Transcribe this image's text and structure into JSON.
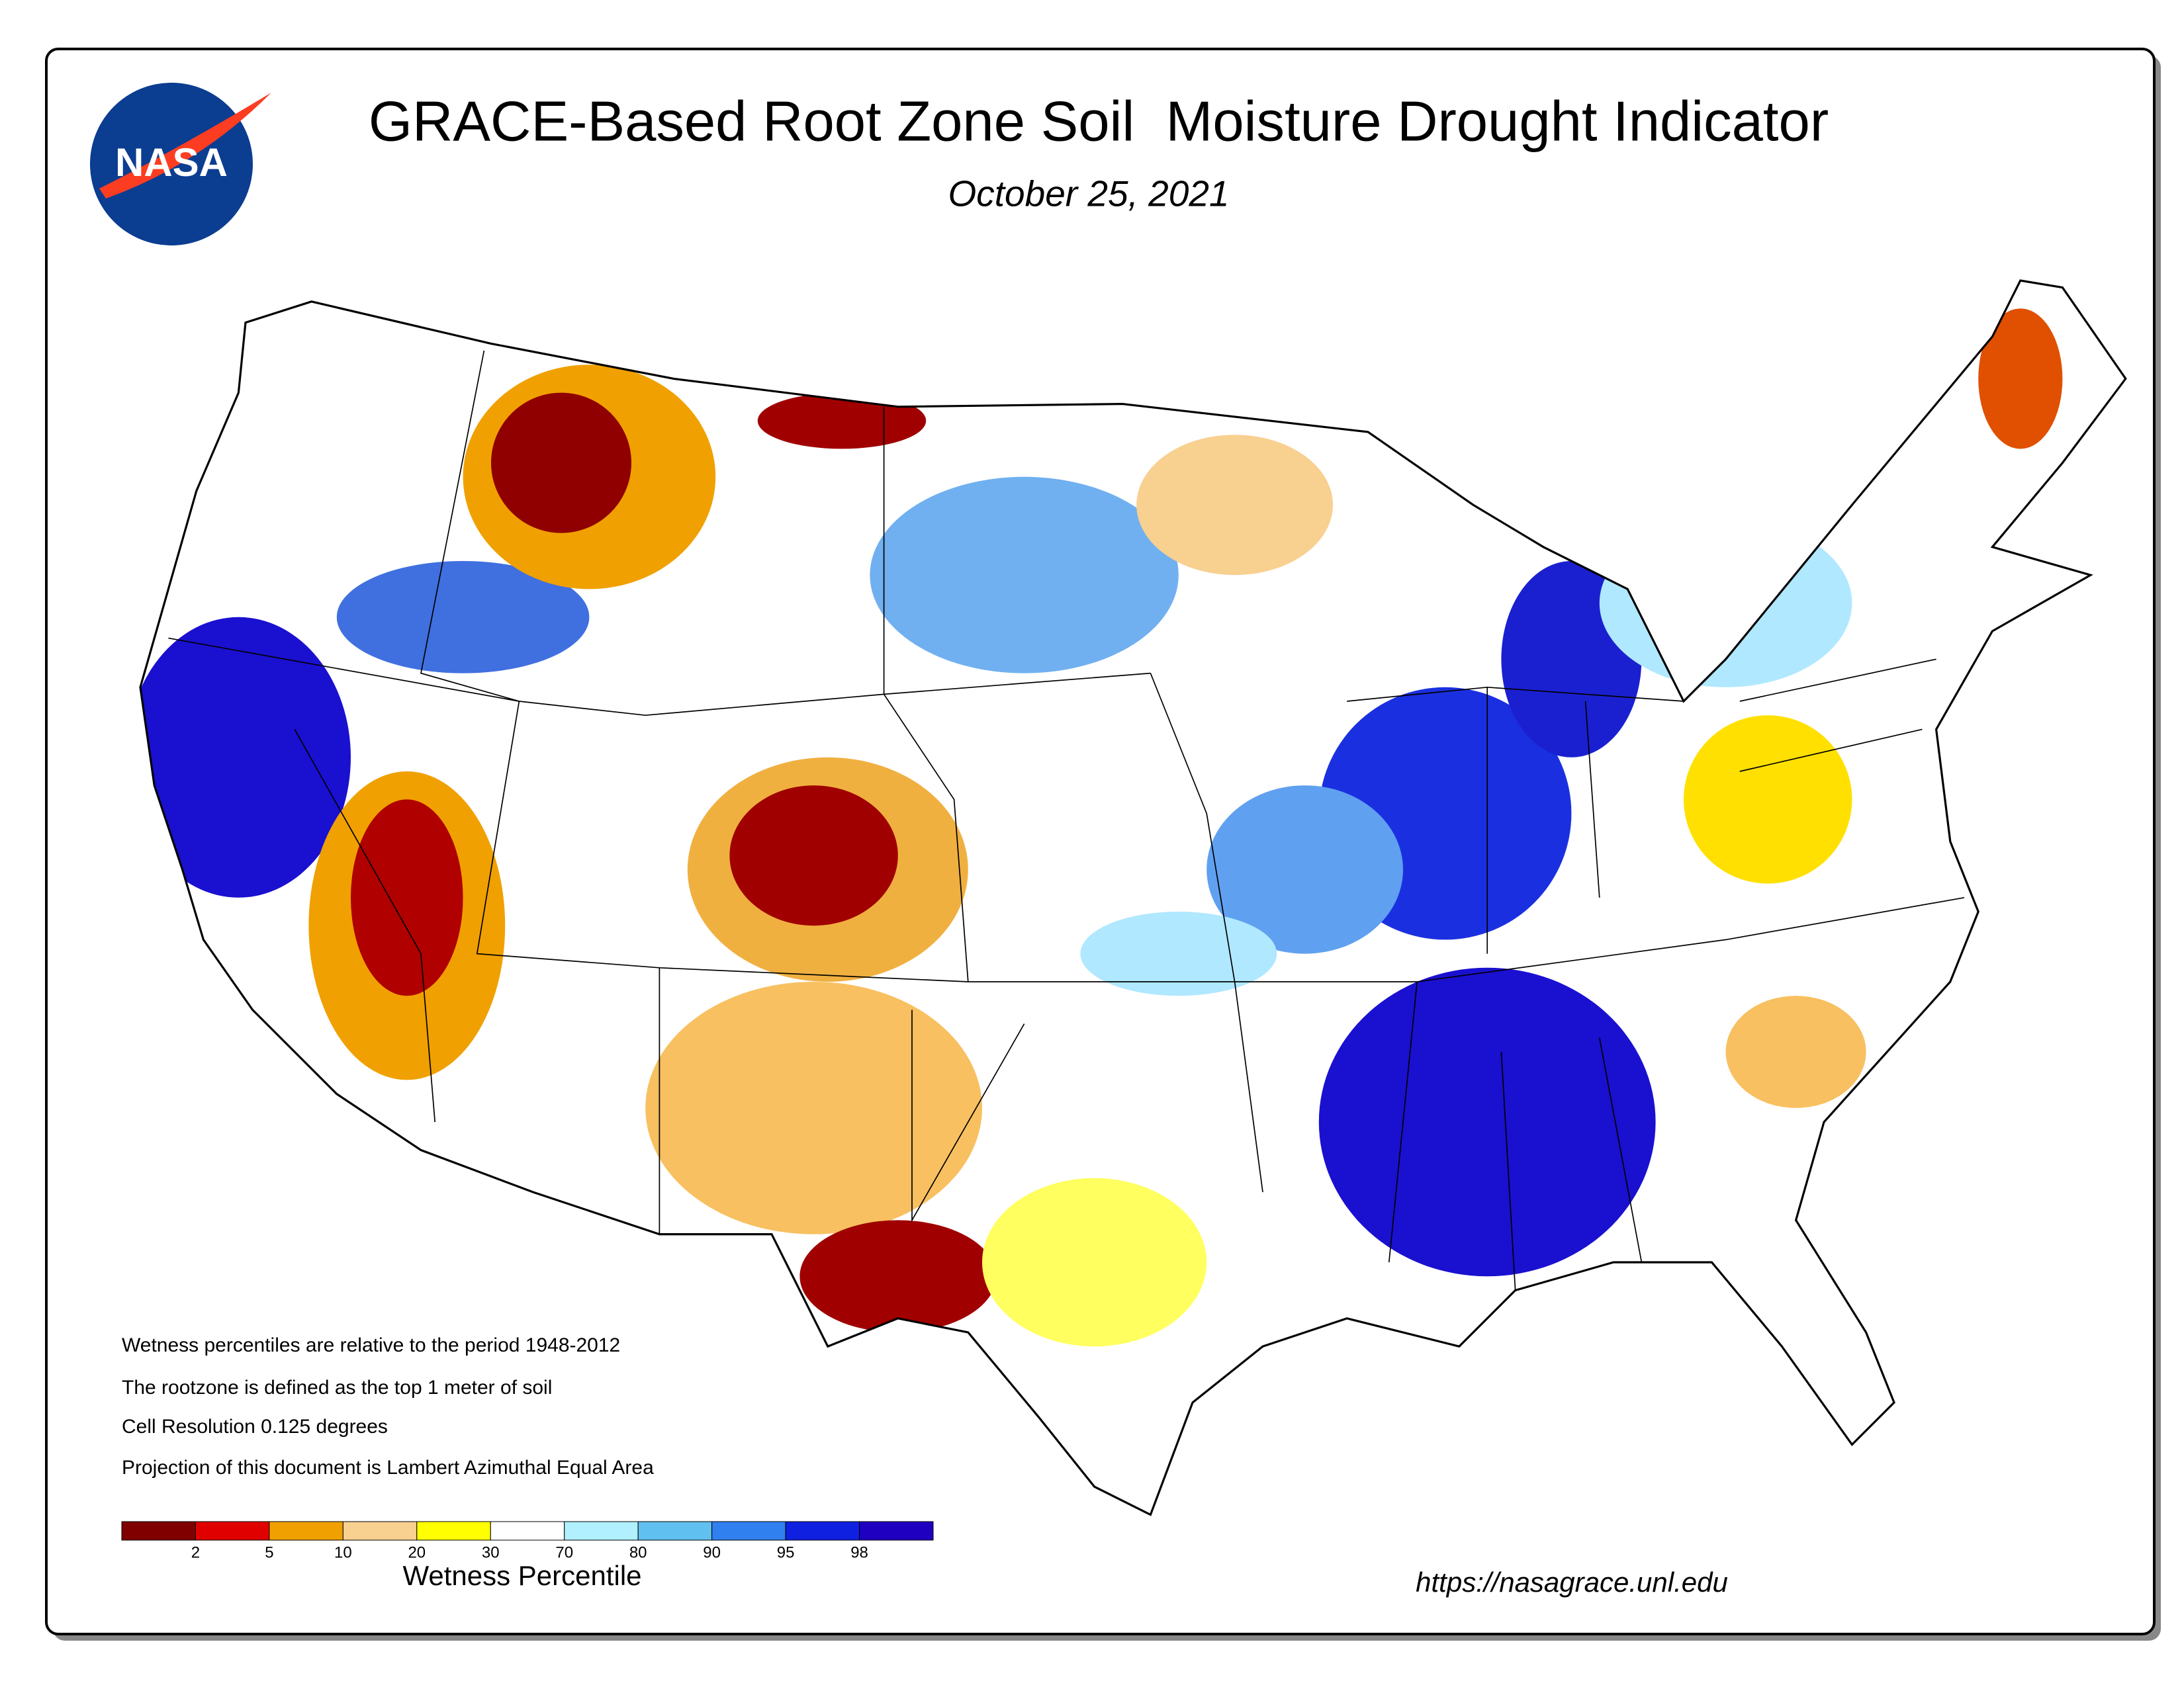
{
  "header": {
    "title": "GRACE-Based Root Zone Soil  Moisture Drought Indicator",
    "date": "October 25, 2021",
    "logo": "NASA"
  },
  "notes": [
    "Wetness percentiles are relative to the period 1948-2012",
    "The rootzone is defined as the top 1 meter of soil",
    "Cell Resolution 0.125 degrees",
    "Projection of this document is Lambert Azimuthal Equal Area"
  ],
  "legend": {
    "title": "Wetness Percentile",
    "colors": [
      "#800000",
      "#e00000",
      "#f0a000",
      "#f8d090",
      "#ffff00",
      "#ffffff",
      "#b0f0ff",
      "#60c0f0",
      "#3080f0",
      "#1020e0",
      "#2000c0"
    ],
    "ticks": [
      2,
      5,
      10,
      20,
      30,
      70,
      80,
      90,
      95,
      98
    ]
  },
  "url": "https://nasagrace.unl.edu"
}
